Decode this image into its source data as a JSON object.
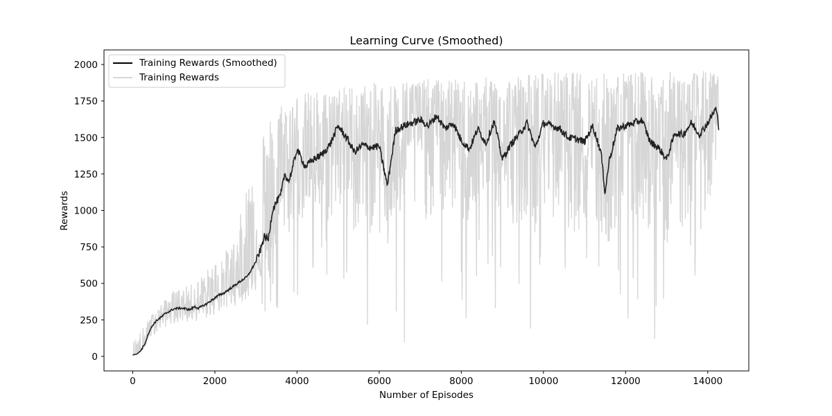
{
  "chart_data": {
    "type": "line",
    "title": "Learning Curve (Smoothed)",
    "xlabel": "Number of Episodes",
    "ylabel": "Rewards",
    "xlim": [
      -700,
      15000
    ],
    "ylim": [
      -100,
      2100
    ],
    "x_ticks": [
      0,
      2000,
      4000,
      6000,
      8000,
      10000,
      12000,
      14000
    ],
    "y_ticks": [
      0,
      250,
      500,
      750,
      1000,
      1250,
      1500,
      1750,
      2000
    ],
    "grid": false,
    "legend_position": "upper-left",
    "x_max_episode": 14270,
    "series": [
      {
        "name": "Training Rewards (Smoothed)",
        "color": "#000000",
        "approx_points": [
          [
            0,
            10
          ],
          [
            100,
            15
          ],
          [
            200,
            40
          ],
          [
            300,
            90
          ],
          [
            400,
            170
          ],
          [
            500,
            220
          ],
          [
            600,
            250
          ],
          [
            700,
            270
          ],
          [
            800,
            295
          ],
          [
            900,
            310
          ],
          [
            1000,
            325
          ],
          [
            1100,
            330
          ],
          [
            1200,
            330
          ],
          [
            1300,
            325
          ],
          [
            1400,
            320
          ],
          [
            1500,
            340
          ],
          [
            1600,
            330
          ],
          [
            1700,
            345
          ],
          [
            1800,
            360
          ],
          [
            1900,
            380
          ],
          [
            2000,
            400
          ],
          [
            2100,
            420
          ],
          [
            2200,
            430
          ],
          [
            2300,
            450
          ],
          [
            2400,
            470
          ],
          [
            2500,
            490
          ],
          [
            2600,
            510
          ],
          [
            2700,
            530
          ],
          [
            2800,
            550
          ],
          [
            2900,
            600
          ],
          [
            3000,
            650
          ],
          [
            3100,
            720
          ],
          [
            3200,
            820
          ],
          [
            3300,
            800
          ],
          [
            3400,
            1000
          ],
          [
            3500,
            1060
          ],
          [
            3600,
            1100
          ],
          [
            3700,
            1250
          ],
          [
            3800,
            1200
          ],
          [
            3900,
            1300
          ],
          [
            4000,
            1420
          ],
          [
            4200,
            1300
          ],
          [
            4400,
            1350
          ],
          [
            4600,
            1380
          ],
          [
            4800,
            1450
          ],
          [
            5000,
            1580
          ],
          [
            5200,
            1500
          ],
          [
            5400,
            1400
          ],
          [
            5600,
            1450
          ],
          [
            5800,
            1430
          ],
          [
            6000,
            1440
          ],
          [
            6200,
            1170
          ],
          [
            6400,
            1550
          ],
          [
            6600,
            1580
          ],
          [
            6800,
            1600
          ],
          [
            7000,
            1620
          ],
          [
            7200,
            1580
          ],
          [
            7400,
            1650
          ],
          [
            7600,
            1560
          ],
          [
            7800,
            1600
          ],
          [
            8000,
            1480
          ],
          [
            8200,
            1420
          ],
          [
            8400,
            1560
          ],
          [
            8600,
            1460
          ],
          [
            8800,
            1610
          ],
          [
            9000,
            1350
          ],
          [
            9200,
            1450
          ],
          [
            9400,
            1520
          ],
          [
            9600,
            1600
          ],
          [
            9800,
            1430
          ],
          [
            10000,
            1600
          ],
          [
            10200,
            1580
          ],
          [
            10400,
            1560
          ],
          [
            10600,
            1500
          ],
          [
            10800,
            1490
          ],
          [
            11000,
            1470
          ],
          [
            11200,
            1580
          ],
          [
            11400,
            1400
          ],
          [
            11500,
            1120
          ],
          [
            11600,
            1340
          ],
          [
            11800,
            1560
          ],
          [
            12000,
            1580
          ],
          [
            12200,
            1600
          ],
          [
            12400,
            1620
          ],
          [
            12600,
            1470
          ],
          [
            12800,
            1430
          ],
          [
            13000,
            1350
          ],
          [
            13200,
            1530
          ],
          [
            13400,
            1520
          ],
          [
            13600,
            1600
          ],
          [
            13800,
            1520
          ],
          [
            14000,
            1600
          ],
          [
            14100,
            1650
          ],
          [
            14200,
            1700
          ],
          [
            14270,
            1570
          ]
        ]
      },
      {
        "name": "Training Rewards",
        "color": "#d6d6d6",
        "approx_envelope": [
          [
            0,
            0,
            100
          ],
          [
            500,
            50,
            300
          ],
          [
            1000,
            100,
            450
          ],
          [
            1500,
            120,
            500
          ],
          [
            2000,
            140,
            650
          ],
          [
            2500,
            170,
            800
          ],
          [
            3000,
            200,
            1500
          ],
          [
            3500,
            300,
            1750
          ],
          [
            4000,
            400,
            1800
          ],
          [
            5000,
            200,
            1850
          ],
          [
            6000,
            60,
            1880
          ],
          [
            7000,
            100,
            1900
          ],
          [
            8000,
            200,
            1900
          ],
          [
            9000,
            250,
            1920
          ],
          [
            10000,
            100,
            1950
          ],
          [
            11000,
            50,
            1950
          ],
          [
            12000,
            50,
            1950
          ],
          [
            13000,
            50,
            1950
          ],
          [
            14000,
            60,
            1960
          ],
          [
            14270,
            800,
            1930
          ]
        ]
      }
    ]
  }
}
